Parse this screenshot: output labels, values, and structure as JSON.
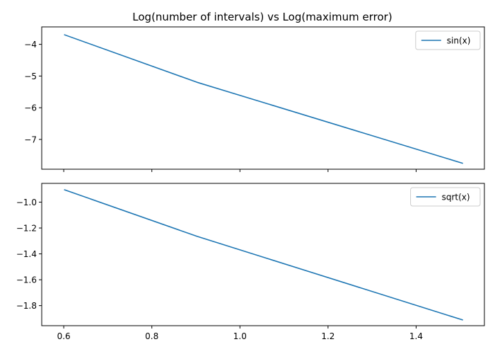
{
  "chart_data": {
    "title": "Log(number of intervals) vs Log(maximum error)",
    "type": "line",
    "shared_x": true,
    "xlim": [
      0.55,
      1.555
    ],
    "xticks": [
      0.6,
      0.8,
      1.0,
      1.2,
      1.4
    ],
    "xtick_labels": [
      "0.6",
      "0.8",
      "1.0",
      "1.2",
      "1.4"
    ],
    "line_color": "#1f77b4",
    "panels": [
      {
        "legend": "top-right",
        "ylim": [
          -7.94,
          -3.45
        ],
        "yticks": [
          -4,
          -5,
          -6,
          -7
        ],
        "ytick_labels": [
          "−4",
          "−5",
          "−6",
          "−7"
        ],
        "series": [
          {
            "name": "sin(x)",
            "x": [
              0.602,
              0.903,
              1.505
            ],
            "y": [
              -3.7,
              -5.2,
              -7.75
            ]
          }
        ]
      },
      {
        "legend": "top-right",
        "ylim": [
          -1.955,
          -0.855
        ],
        "yticks": [
          -1.0,
          -1.2,
          -1.4,
          -1.6,
          -1.8
        ],
        "ytick_labels": [
          "−1.0",
          "−1.2",
          "−1.4",
          "−1.6",
          "−1.8"
        ],
        "series": [
          {
            "name": "sqrt(x)",
            "x": [
              0.602,
              0.903,
              1.505
            ],
            "y": [
              -0.905,
              -1.265,
              -1.91
            ]
          }
        ]
      }
    ]
  }
}
